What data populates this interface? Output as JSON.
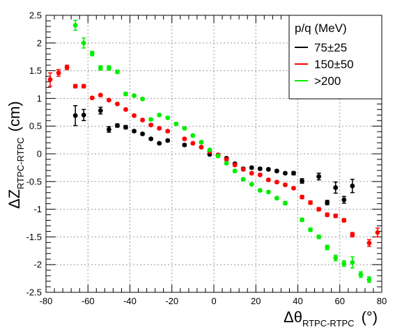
{
  "chart_data": {
    "type": "scatter",
    "xlabel": {
      "main": "Δθ",
      "sub": "RTPC-RTPC",
      "unit": "(°)"
    },
    "ylabel": {
      "main": "ΔZ",
      "sub": "RTPC-RTPC",
      "unit": "(cm)"
    },
    "xlim": [
      -80,
      80
    ],
    "ylim": [
      -2.5,
      2.5
    ],
    "x_ticks": [
      -80,
      -60,
      -40,
      -20,
      0,
      20,
      40,
      60,
      80
    ],
    "y_ticks": [
      -2.5,
      -2,
      -1.5,
      -1,
      -0.5,
      0,
      0.5,
      1,
      1.5,
      2,
      2.5
    ],
    "grid": true,
    "legend": {
      "title": "p/q  (MeV)",
      "placement": "top-right",
      "entries": [
        "75±25",
        "150±50",
        ">200"
      ]
    },
    "series": [
      {
        "name": "75±25",
        "color": "#000000",
        "points": [
          {
            "x": -66,
            "y": 0.69,
            "err": 0.18
          },
          {
            "x": -62,
            "y": 0.7,
            "err": 0.1
          },
          {
            "x": -54,
            "y": 0.78,
            "err": 0.06
          },
          {
            "x": -50,
            "y": 0.44,
            "err": 0.05
          },
          {
            "x": -46,
            "y": 0.51,
            "err": 0.03
          },
          {
            "x": -42,
            "y": 0.48,
            "err": 0.03
          },
          {
            "x": -38,
            "y": 0.41,
            "err": 0.02
          },
          {
            "x": -34,
            "y": 0.36,
            "err": 0.02
          },
          {
            "x": -30,
            "y": 0.27,
            "err": 0.02
          },
          {
            "x": -26,
            "y": 0.19,
            "err": 0.02
          },
          {
            "x": -22,
            "y": 0.24,
            "err": 0.02
          },
          {
            "x": -14,
            "y": 0.16,
            "err": 0.02
          },
          {
            "x": -2,
            "y": -0.01,
            "err": 0.02
          },
          {
            "x": 2,
            "y": -0.02,
            "err": 0.02
          },
          {
            "x": 6,
            "y": -0.08,
            "err": 0.02
          },
          {
            "x": 10,
            "y": -0.18,
            "err": 0.02
          },
          {
            "x": 14,
            "y": -0.27,
            "err": 0.02
          },
          {
            "x": 18,
            "y": -0.25,
            "err": 0.02
          },
          {
            "x": 22,
            "y": -0.27,
            "err": 0.02
          },
          {
            "x": 26,
            "y": -0.28,
            "err": 0.02
          },
          {
            "x": 30,
            "y": -0.31,
            "err": 0.02
          },
          {
            "x": 34,
            "y": -0.35,
            "err": 0.02
          },
          {
            "x": 38,
            "y": -0.35,
            "err": 0.03
          },
          {
            "x": 42,
            "y": -0.49,
            "err": 0.04
          },
          {
            "x": 50,
            "y": -0.41,
            "err": 0.06
          },
          {
            "x": 54,
            "y": -0.88,
            "err": 0.04
          },
          {
            "x": 58,
            "y": -0.61,
            "err": 0.1
          },
          {
            "x": 62,
            "y": -0.83,
            "err": 0.06
          },
          {
            "x": 66,
            "y": -0.58,
            "err": 0.12
          }
        ]
      },
      {
        "name": "150±50",
        "color": "#ff0000",
        "points": [
          {
            "x": -78,
            "y": 1.34,
            "err": 0.12
          },
          {
            "x": -74,
            "y": 1.46,
            "err": 0.06
          },
          {
            "x": -70,
            "y": 1.56,
            "err": 0.04
          },
          {
            "x": -66,
            "y": 1.22,
            "err": 0.03
          },
          {
            "x": -62,
            "y": 1.22,
            "err": 0.03
          },
          {
            "x": -58,
            "y": 1.01,
            "err": 0.02
          },
          {
            "x": -54,
            "y": 1.06,
            "err": 0.02
          },
          {
            "x": -50,
            "y": 0.97,
            "err": 0.02
          },
          {
            "x": -46,
            "y": 0.9,
            "err": 0.02
          },
          {
            "x": -42,
            "y": 0.8,
            "err": 0.02
          },
          {
            "x": -38,
            "y": 0.69,
            "err": 0.02
          },
          {
            "x": -34,
            "y": 0.61,
            "err": 0.02
          },
          {
            "x": -30,
            "y": 0.52,
            "err": 0.02
          },
          {
            "x": -26,
            "y": 0.46,
            "err": 0.02
          },
          {
            "x": -22,
            "y": 0.41,
            "err": 0.02
          },
          {
            "x": -14,
            "y": 0.27,
            "err": 0.02
          },
          {
            "x": -10,
            "y": 0.19,
            "err": 0.02
          },
          {
            "x": -6,
            "y": 0.12,
            "err": 0.02
          },
          {
            "x": -2,
            "y": 0.04,
            "err": 0.02
          },
          {
            "x": 2,
            "y": -0.02,
            "err": 0.02
          },
          {
            "x": 6,
            "y": -0.1,
            "err": 0.02
          },
          {
            "x": 10,
            "y": -0.2,
            "err": 0.02
          },
          {
            "x": 14,
            "y": -0.28,
            "err": 0.02
          },
          {
            "x": 18,
            "y": -0.35,
            "err": 0.02
          },
          {
            "x": 22,
            "y": -0.38,
            "err": 0.02
          },
          {
            "x": 26,
            "y": -0.47,
            "err": 0.02
          },
          {
            "x": 30,
            "y": -0.51,
            "err": 0.02
          },
          {
            "x": 34,
            "y": -0.56,
            "err": 0.02
          },
          {
            "x": 38,
            "y": -0.62,
            "err": 0.02
          },
          {
            "x": 42,
            "y": -0.78,
            "err": 0.03
          },
          {
            "x": 46,
            "y": -0.88,
            "err": 0.03
          },
          {
            "x": 50,
            "y": -1.0,
            "err": 0.03
          },
          {
            "x": 54,
            "y": -1.1,
            "err": 0.03
          },
          {
            "x": 58,
            "y": -1.12,
            "err": 0.03
          },
          {
            "x": 62,
            "y": -1.2,
            "err": 0.03
          },
          {
            "x": 66,
            "y": -1.46,
            "err": 0.04
          },
          {
            "x": 74,
            "y": -1.61,
            "err": 0.06
          },
          {
            "x": 78,
            "y": -1.42,
            "err": 0.08
          }
        ]
      },
      {
        "name": ">200",
        "color": "#00ee00",
        "points": [
          {
            "x": -66,
            "y": 2.32,
            "err": 0.09
          },
          {
            "x": -62,
            "y": 2.0,
            "err": 0.09
          },
          {
            "x": -58,
            "y": 1.81,
            "err": 0.04
          },
          {
            "x": -54,
            "y": 1.55,
            "err": 0.04
          },
          {
            "x": -50,
            "y": 1.55,
            "err": 0.04
          },
          {
            "x": -46,
            "y": 1.48,
            "err": 0.03
          },
          {
            "x": -42,
            "y": 1.08,
            "err": 0.03
          },
          {
            "x": -38,
            "y": 1.05,
            "err": 0.02
          },
          {
            "x": -34,
            "y": 0.99,
            "err": 0.02
          },
          {
            "x": -30,
            "y": 0.62,
            "err": 0.02
          },
          {
            "x": -26,
            "y": 0.7,
            "err": 0.02
          },
          {
            "x": -22,
            "y": 0.65,
            "err": 0.02
          },
          {
            "x": -18,
            "y": 0.54,
            "err": 0.02
          },
          {
            "x": -14,
            "y": 0.46,
            "err": 0.02
          },
          {
            "x": -10,
            "y": 0.33,
            "err": 0.02
          },
          {
            "x": -6,
            "y": 0.21,
            "err": 0.02
          },
          {
            "x": -2,
            "y": 0.07,
            "err": 0.02
          },
          {
            "x": 2,
            "y": -0.04,
            "err": 0.02
          },
          {
            "x": 6,
            "y": -0.17,
            "err": 0.02
          },
          {
            "x": 10,
            "y": -0.31,
            "err": 0.02
          },
          {
            "x": 14,
            "y": -0.46,
            "err": 0.02
          },
          {
            "x": 18,
            "y": -0.55,
            "err": 0.02
          },
          {
            "x": 22,
            "y": -0.66,
            "err": 0.02
          },
          {
            "x": 26,
            "y": -0.69,
            "err": 0.02
          },
          {
            "x": 30,
            "y": -0.8,
            "err": 0.02
          },
          {
            "x": 34,
            "y": -0.89,
            "err": 0.03
          },
          {
            "x": 42,
            "y": -1.19,
            "err": 0.03
          },
          {
            "x": 46,
            "y": -1.37,
            "err": 0.03
          },
          {
            "x": 50,
            "y": -1.5,
            "err": 0.03
          },
          {
            "x": 54,
            "y": -1.69,
            "err": 0.04
          },
          {
            "x": 58,
            "y": -1.88,
            "err": 0.05
          },
          {
            "x": 62,
            "y": -1.98,
            "err": 0.05
          },
          {
            "x": 66,
            "y": -1.96,
            "err": 0.1
          },
          {
            "x": 70,
            "y": -2.18,
            "err": 0.05
          },
          {
            "x": 74,
            "y": -2.27,
            "err": 0.05
          }
        ]
      }
    ]
  }
}
